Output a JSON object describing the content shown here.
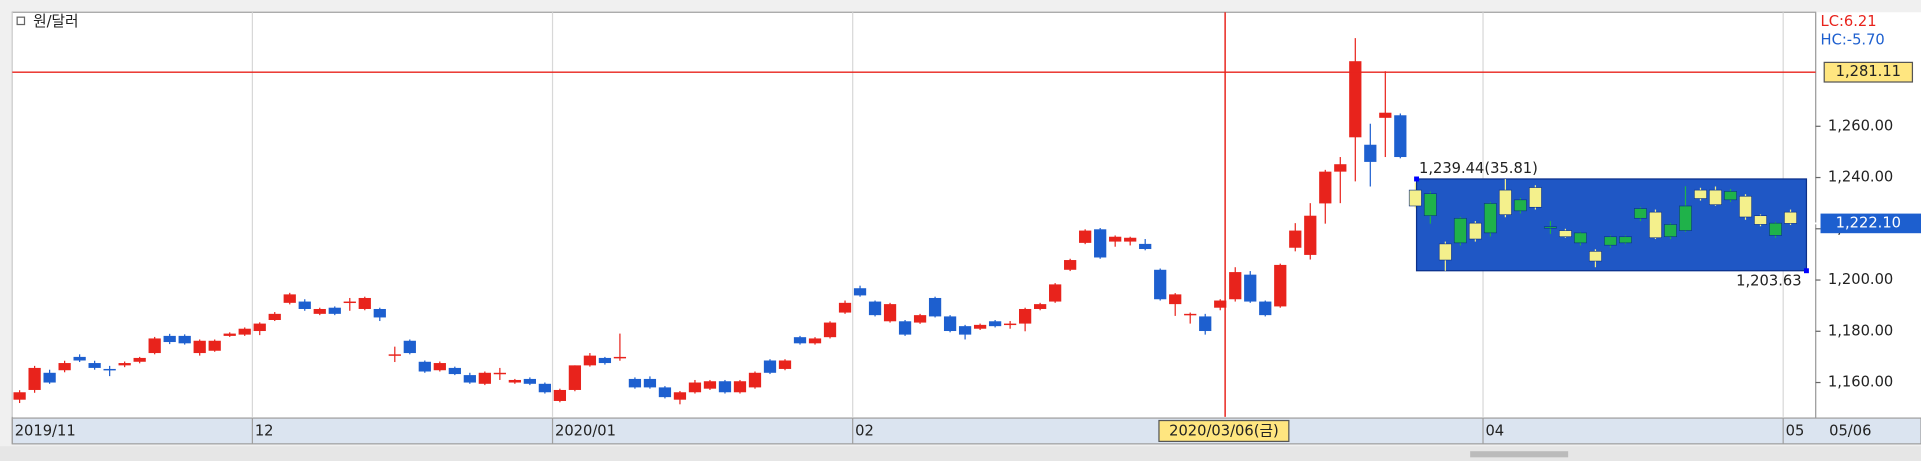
{
  "chart_data": {
    "type": "candlestick",
    "legend": "원/달러",
    "lc_label": "LC:6.21",
    "hc_label": "HC:-5.70",
    "open": [
      1153.3,
      1157.1,
      1163.8,
      1164.8,
      1170.0,
      1167.6,
      1165.3,
      1166.7,
      1168.1,
      1171.5,
      1178.2,
      1178.2,
      1171.5,
      1172.4,
      1178.2,
      1178.7,
      1180.1,
      1184.4,
      1191.1,
      1191.6,
      1186.8,
      1189.2,
      1191.6,
      1188.7,
      1188.7,
      1171.0,
      1176.3,
      1168.1,
      1164.8,
      1165.7,
      1162.9,
      1159.5,
      1163.8,
      1160.0,
      1161.4,
      1159.5,
      1152.8,
      1157.1,
      1166.7,
      1169.6,
      1170.0,
      1161.4,
      1161.4,
      1158.1,
      1153.3,
      1156.2,
      1157.6,
      1160.5,
      1156.2,
      1158.1,
      1168.6,
      1165.3,
      1177.7,
      1175.3,
      1177.7,
      1187.3,
      1196.8,
      1191.6,
      1183.9,
      1183.9,
      1183.4,
      1193.0,
      1185.8,
      1182.0,
      1181.0,
      1183.9,
      1183.0,
      1183.0,
      1188.7,
      1191.6,
      1204.0,
      1214.5,
      1219.8,
      1215.0,
      1215.0,
      1214.1,
      1204.0,
      1190.6,
      1186.3,
      1185.8,
      1189.2,
      1192.5,
      1202.1,
      1191.6,
      1189.7,
      1212.6,
      1209.8,
      1229.9,
      1242.3,
      1255.7,
      1252.8,
      1263.3,
      1264.3,
      1235.1,
      1225.1,
      1214.1,
      1214.5,
      1222.2,
      1218.4,
      1235.1,
      1227.0,
      1236.1,
      1220.8,
      1219.3,
      1214.5,
      1211.2,
      1213.6,
      1214.5,
      1224.1,
      1226.5,
      1216.9,
      1219.3,
      1235.1,
      1235.1,
      1231.3,
      1232.7,
      1225.1,
      1217.4,
      1226.5
    ],
    "high": [
      1157.0,
      1166.5,
      1165.0,
      1168.5,
      1171.0,
      1168.5,
      1166.5,
      1168.2,
      1170.0,
      1177.8,
      1179.0,
      1178.8,
      1176.8,
      1176.8,
      1179.6,
      1181.5,
      1183.5,
      1187.5,
      1195.0,
      1192.5,
      1189.2,
      1189.7,
      1193.0,
      1193.5,
      1189.2,
      1174.0,
      1176.8,
      1168.6,
      1168.2,
      1166.2,
      1163.8,
      1164.3,
      1165.7,
      1161.4,
      1162.0,
      1160.0,
      1157.6,
      1166.7,
      1171.5,
      1170.0,
      1179.1,
      1162.0,
      1162.4,
      1158.6,
      1156.7,
      1161.0,
      1161.0,
      1161.0,
      1161.0,
      1164.3,
      1169.1,
      1169.1,
      1178.2,
      1177.7,
      1183.9,
      1192.0,
      1197.8,
      1192.0,
      1191.1,
      1184.4,
      1186.8,
      1193.5,
      1186.3,
      1182.5,
      1183.0,
      1184.4,
      1184.0,
      1189.2,
      1191.1,
      1198.8,
      1208.3,
      1219.8,
      1220.3,
      1217.4,
      1216.9,
      1216.0,
      1204.5,
      1194.9,
      1187.3,
      1186.8,
      1192.5,
      1205.0,
      1203.5,
      1192.0,
      1206.4,
      1222.2,
      1230.0,
      1243.0,
      1248.0,
      1294.4,
      1261.0,
      1281.5,
      1265.0,
      1238.0,
      1234.5,
      1215.0,
      1224.6,
      1223.0,
      1230.4,
      1239.4,
      1232.0,
      1237.0,
      1223.0,
      1220.0,
      1218.8,
      1212.0,
      1217.4,
      1217.4,
      1228.4,
      1227.5,
      1222.2,
      1236.6,
      1236.0,
      1236.5,
      1235.5,
      1233.5,
      1225.6,
      1222.7,
      1227.5
    ],
    "low": [
      1152.0,
      1156.0,
      1159.5,
      1164.0,
      1168.0,
      1165.0,
      1162.5,
      1166.0,
      1167.5,
      1171.0,
      1175.0,
      1174.8,
      1170.5,
      1172.0,
      1177.8,
      1178.2,
      1178.5,
      1184.0,
      1190.5,
      1188.0,
      1186.3,
      1186.3,
      1188.0,
      1188.2,
      1184.0,
      1168.0,
      1171.0,
      1163.8,
      1164.3,
      1162.9,
      1159.5,
      1159.0,
      1161.0,
      1159.5,
      1159.0,
      1155.7,
      1152.3,
      1156.6,
      1166.2,
      1167.0,
      1168.5,
      1157.6,
      1157.6,
      1153.8,
      1151.5,
      1155.7,
      1157.1,
      1155.7,
      1155.7,
      1157.6,
      1163.3,
      1164.8,
      1174.8,
      1174.8,
      1177.2,
      1186.8,
      1193.5,
      1185.8,
      1183.4,
      1178.2,
      1182.9,
      1185.4,
      1179.6,
      1176.8,
      1180.5,
      1181.5,
      1181.0,
      1180.0,
      1188.2,
      1191.1,
      1203.5,
      1214.0,
      1208.3,
      1213.0,
      1213.5,
      1211.6,
      1192.0,
      1186.0,
      1183.0,
      1178.7,
      1188.2,
      1191.6,
      1191.1,
      1185.8,
      1189.2,
      1211.2,
      1208.0,
      1222.0,
      1230.0,
      1238.5,
      1236.5,
      1248.0,
      1247.5,
      1228.0,
      1222.0,
      1203.6,
      1213.5,
      1215.0,
      1217.0,
      1224.5,
      1226.0,
      1227.5,
      1218.0,
      1216.5,
      1213.5,
      1205.0,
      1212.6,
      1214.0,
      1223.0,
      1216.0,
      1216.0,
      1218.8,
      1231.0,
      1229.0,
      1230.5,
      1223.5,
      1221.0,
      1216.5,
      1221.5
    ],
    "close": [
      1156.2,
      1165.7,
      1160.0,
      1167.6,
      1168.6,
      1165.7,
      1165.0,
      1167.6,
      1169.6,
      1177.2,
      1175.8,
      1175.3,
      1176.3,
      1176.3,
      1179.1,
      1181.0,
      1183.0,
      1186.8,
      1194.4,
      1188.7,
      1188.7,
      1186.8,
      1191.6,
      1193.0,
      1185.4,
      1171.0,
      1171.5,
      1164.3,
      1167.6,
      1163.3,
      1160.0,
      1163.8,
      1163.8,
      1161.0,
      1159.5,
      1156.2,
      1157.1,
      1166.7,
      1170.5,
      1167.6,
      1170.0,
      1158.1,
      1158.1,
      1154.3,
      1156.2,
      1160.0,
      1160.5,
      1156.2,
      1160.5,
      1163.8,
      1163.8,
      1168.6,
      1175.3,
      1177.2,
      1183.4,
      1191.1,
      1194.0,
      1186.3,
      1190.6,
      1178.7,
      1186.3,
      1185.8,
      1180.1,
      1178.7,
      1182.5,
      1182.0,
      1183.0,
      1188.7,
      1190.6,
      1198.3,
      1207.8,
      1219.3,
      1208.8,
      1216.9,
      1216.5,
      1212.1,
      1192.5,
      1194.4,
      1186.8,
      1180.1,
      1192.0,
      1203.1,
      1191.6,
      1186.3,
      1205.9,
      1219.3,
      1225.1,
      1242.3,
      1245.2,
      1285.4,
      1246.1,
      1265.3,
      1248.0,
      1228.9,
      1233.7,
      1207.8,
      1224.1,
      1216.0,
      1229.9,
      1225.5,
      1231.3,
      1228.4,
      1220.8,
      1216.9,
      1218.4,
      1207.4,
      1216.9,
      1216.9,
      1227.9,
      1216.5,
      1221.7,
      1228.9,
      1231.8,
      1229.4,
      1234.6,
      1224.6,
      1221.7,
      1222.2,
      1222.1
    ],
    "ylim": [
      1146.6,
      1304.5
    ],
    "yticks": [
      {
        "value": 1160,
        "label": "1,160.00"
      },
      {
        "value": 1180,
        "label": "1,180.00"
      },
      {
        "value": 1200,
        "label": "1,200.00"
      },
      {
        "value": 1220,
        "label": "1,220.00"
      },
      {
        "value": 1240,
        "label": "1,240.00"
      },
      {
        "value": 1260,
        "label": "1,260.00"
      }
    ],
    "xticks": [
      {
        "value": 0,
        "label": "2019/11"
      },
      {
        "value": 16,
        "label": "12"
      },
      {
        "value": 36,
        "label": "2020/01"
      },
      {
        "value": 56,
        "label": "02"
      },
      {
        "value": 98,
        "label": "04"
      },
      {
        "value": 118,
        "label": "05"
      }
    ],
    "last_date_label": "05/06",
    "crosshair": {
      "index": 80,
      "label": "2020/03/06(금)"
    },
    "hline": {
      "value": 1281.11,
      "label": "1,281.11"
    },
    "current": {
      "value": 1222.1,
      "label": "1,222.10"
    },
    "selection": {
      "start": 93,
      "end": 118,
      "high": 1239.44,
      "low": 1203.63,
      "high_label": "1,239.44(35.81)",
      "low_label": "1,203.63"
    },
    "colors": {
      "up": "#e8231c",
      "down": "#1d5fcf",
      "selection_up": "#1fb24a",
      "selection_down": "#f4f08c",
      "selection_fill": "#1f57c5",
      "hline": "#e8231c"
    },
    "grid": true
  }
}
